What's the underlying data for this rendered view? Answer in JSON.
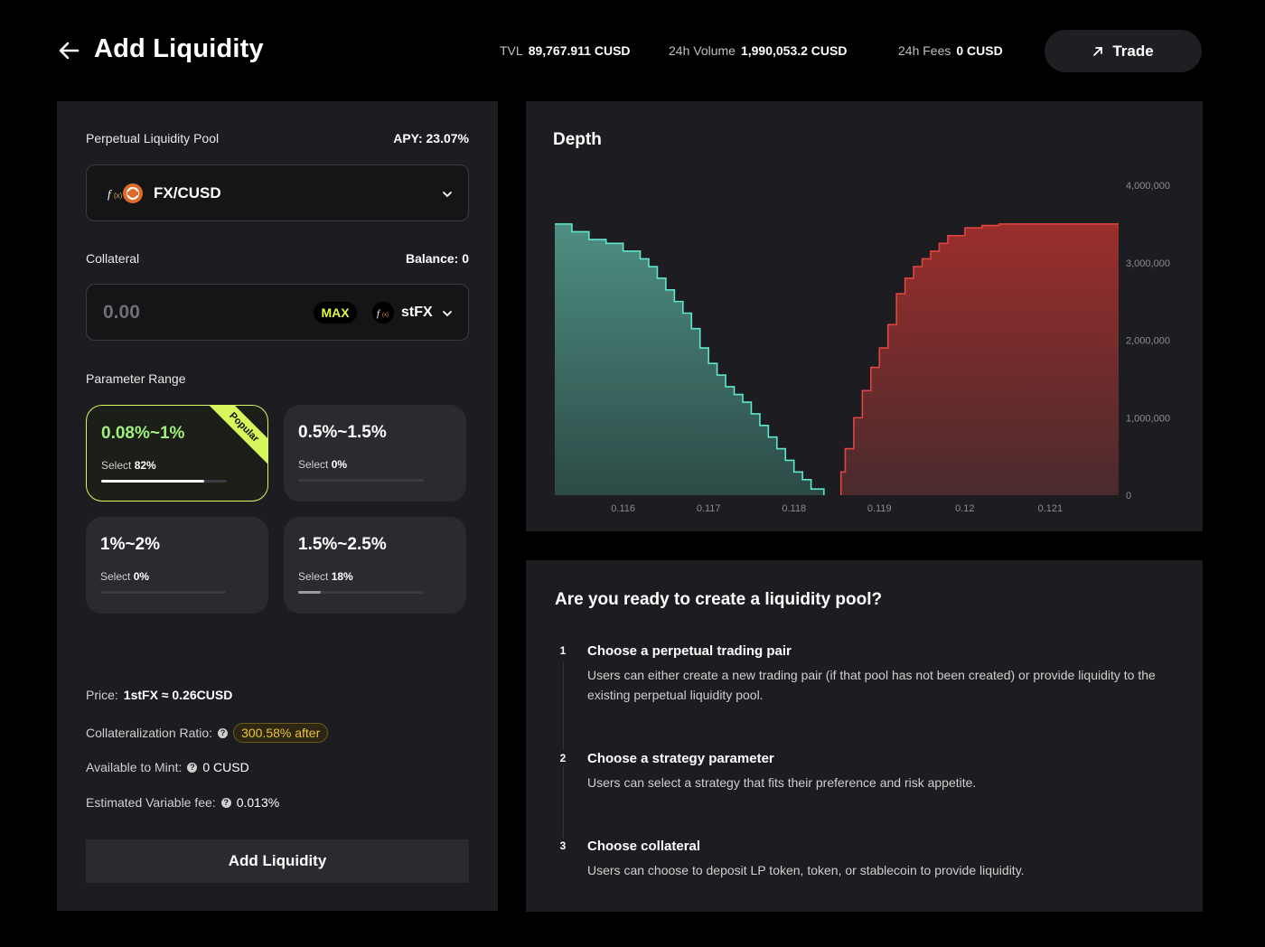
{
  "header": {
    "title": "Add Liquidity",
    "tvl_label": "TVL",
    "tvl_value": "89,767.911 CUSD",
    "volume_label": "24h Volume",
    "volume_value": "1,990,053.2 CUSD",
    "fees_label": "24h Fees",
    "fees_value": "0 CUSD",
    "trade_label": "Trade"
  },
  "pool": {
    "label": "Perpetual Liquidity Pool",
    "apy": "APY: 23.07%",
    "selected": "FX/CUSD"
  },
  "collateral": {
    "label": "Collateral",
    "balance": "Balance: 0",
    "placeholder": "0.00",
    "max_label": "MAX",
    "token": "stFX"
  },
  "range": {
    "label": "Parameter Range",
    "ribbon": "Popular",
    "select_word": "Select",
    "options": [
      {
        "value": "0.08%~1%",
        "percent": "82%",
        "fraction": 0.82
      },
      {
        "value": "0.5%~1.5%",
        "percent": "0%",
        "fraction": 0
      },
      {
        "value": "1%~2%",
        "percent": "0%",
        "fraction": 0
      },
      {
        "value": "1.5%~2.5%",
        "percent": "18%",
        "fraction": 0.18
      }
    ]
  },
  "info": {
    "price_label": "Price:",
    "price_value": "1stFX ≈ 0.26CUSD",
    "ratio_label": "Collateralization Ratio:",
    "ratio_value": "300.58% after",
    "mint_label": "Available to Mint:",
    "mint_value": "0 CUSD",
    "fee_label": "Estimated Variable fee:",
    "fee_value": "0.013%"
  },
  "add_button": "Add Liquidity",
  "colors": {
    "accent": "#d7f75c",
    "bid": "#5ee6cf",
    "ask": "#e0453f",
    "warning": "#f0c240"
  },
  "chart_data": {
    "type": "area",
    "title": "Depth",
    "x_ticks": [
      "0.116",
      "0.117",
      "0.118",
      "0.119",
      "0.12",
      "0.121"
    ],
    "y_ticks": [
      "0",
      "1,000,000",
      "2,000,000",
      "3,000,000",
      "4,000,000"
    ],
    "xlim": [
      0.1152,
      0.1218
    ],
    "ylim": [
      0,
      4000000
    ],
    "series": [
      {
        "side": "bid",
        "x": [
          0.1152,
          0.1154,
          0.1156,
          0.1158,
          0.116,
          0.1162,
          0.1163,
          0.1164,
          0.1165,
          0.1166,
          0.1167,
          0.1168,
          0.1169,
          0.117,
          0.1171,
          0.1172,
          0.1173,
          0.1174,
          0.1175,
          0.1176,
          0.1177,
          0.1178,
          0.1179,
          0.118,
          0.1181,
          0.1182,
          0.11835
        ],
        "y": [
          3500000,
          3400000,
          3300000,
          3250000,
          3150000,
          3050000,
          2950000,
          2800000,
          2650000,
          2500000,
          2350000,
          2150000,
          1900000,
          1700000,
          1550000,
          1400000,
          1300000,
          1200000,
          1050000,
          900000,
          750000,
          600000,
          450000,
          300000,
          200000,
          80000,
          0
        ]
      },
      {
        "side": "ask",
        "x": [
          0.11855,
          0.1186,
          0.1187,
          0.1188,
          0.1189,
          0.119,
          0.1191,
          0.1192,
          0.1193,
          0.1194,
          0.1195,
          0.1196,
          0.1197,
          0.1198,
          0.12,
          0.1202,
          0.1204,
          0.1206,
          0.1208,
          0.1218
        ],
        "y": [
          0,
          300000,
          600000,
          1000000,
          1350000,
          1650000,
          1900000,
          2200000,
          2600000,
          2800000,
          2950000,
          3050000,
          3150000,
          3250000,
          3350000,
          3450000,
          3480000,
          3500000,
          3500000,
          3500000
        ]
      }
    ]
  },
  "guide": {
    "title": "Are you ready to create a liquidity pool?",
    "steps": [
      {
        "num": "1",
        "title": "Choose a perpetual trading pair",
        "desc": "Users can either create a new trading pair (if that pool has not been created) or provide liquidity to the existing perpetual liquidity pool."
      },
      {
        "num": "2",
        "title": "Choose a strategy parameter",
        "desc": "Users can select a strategy that fits their preference and risk appetite."
      },
      {
        "num": "3",
        "title": "Choose collateral",
        "desc": "Users can choose to deposit LP token, token, or stablecoin to provide liquidity."
      }
    ]
  }
}
